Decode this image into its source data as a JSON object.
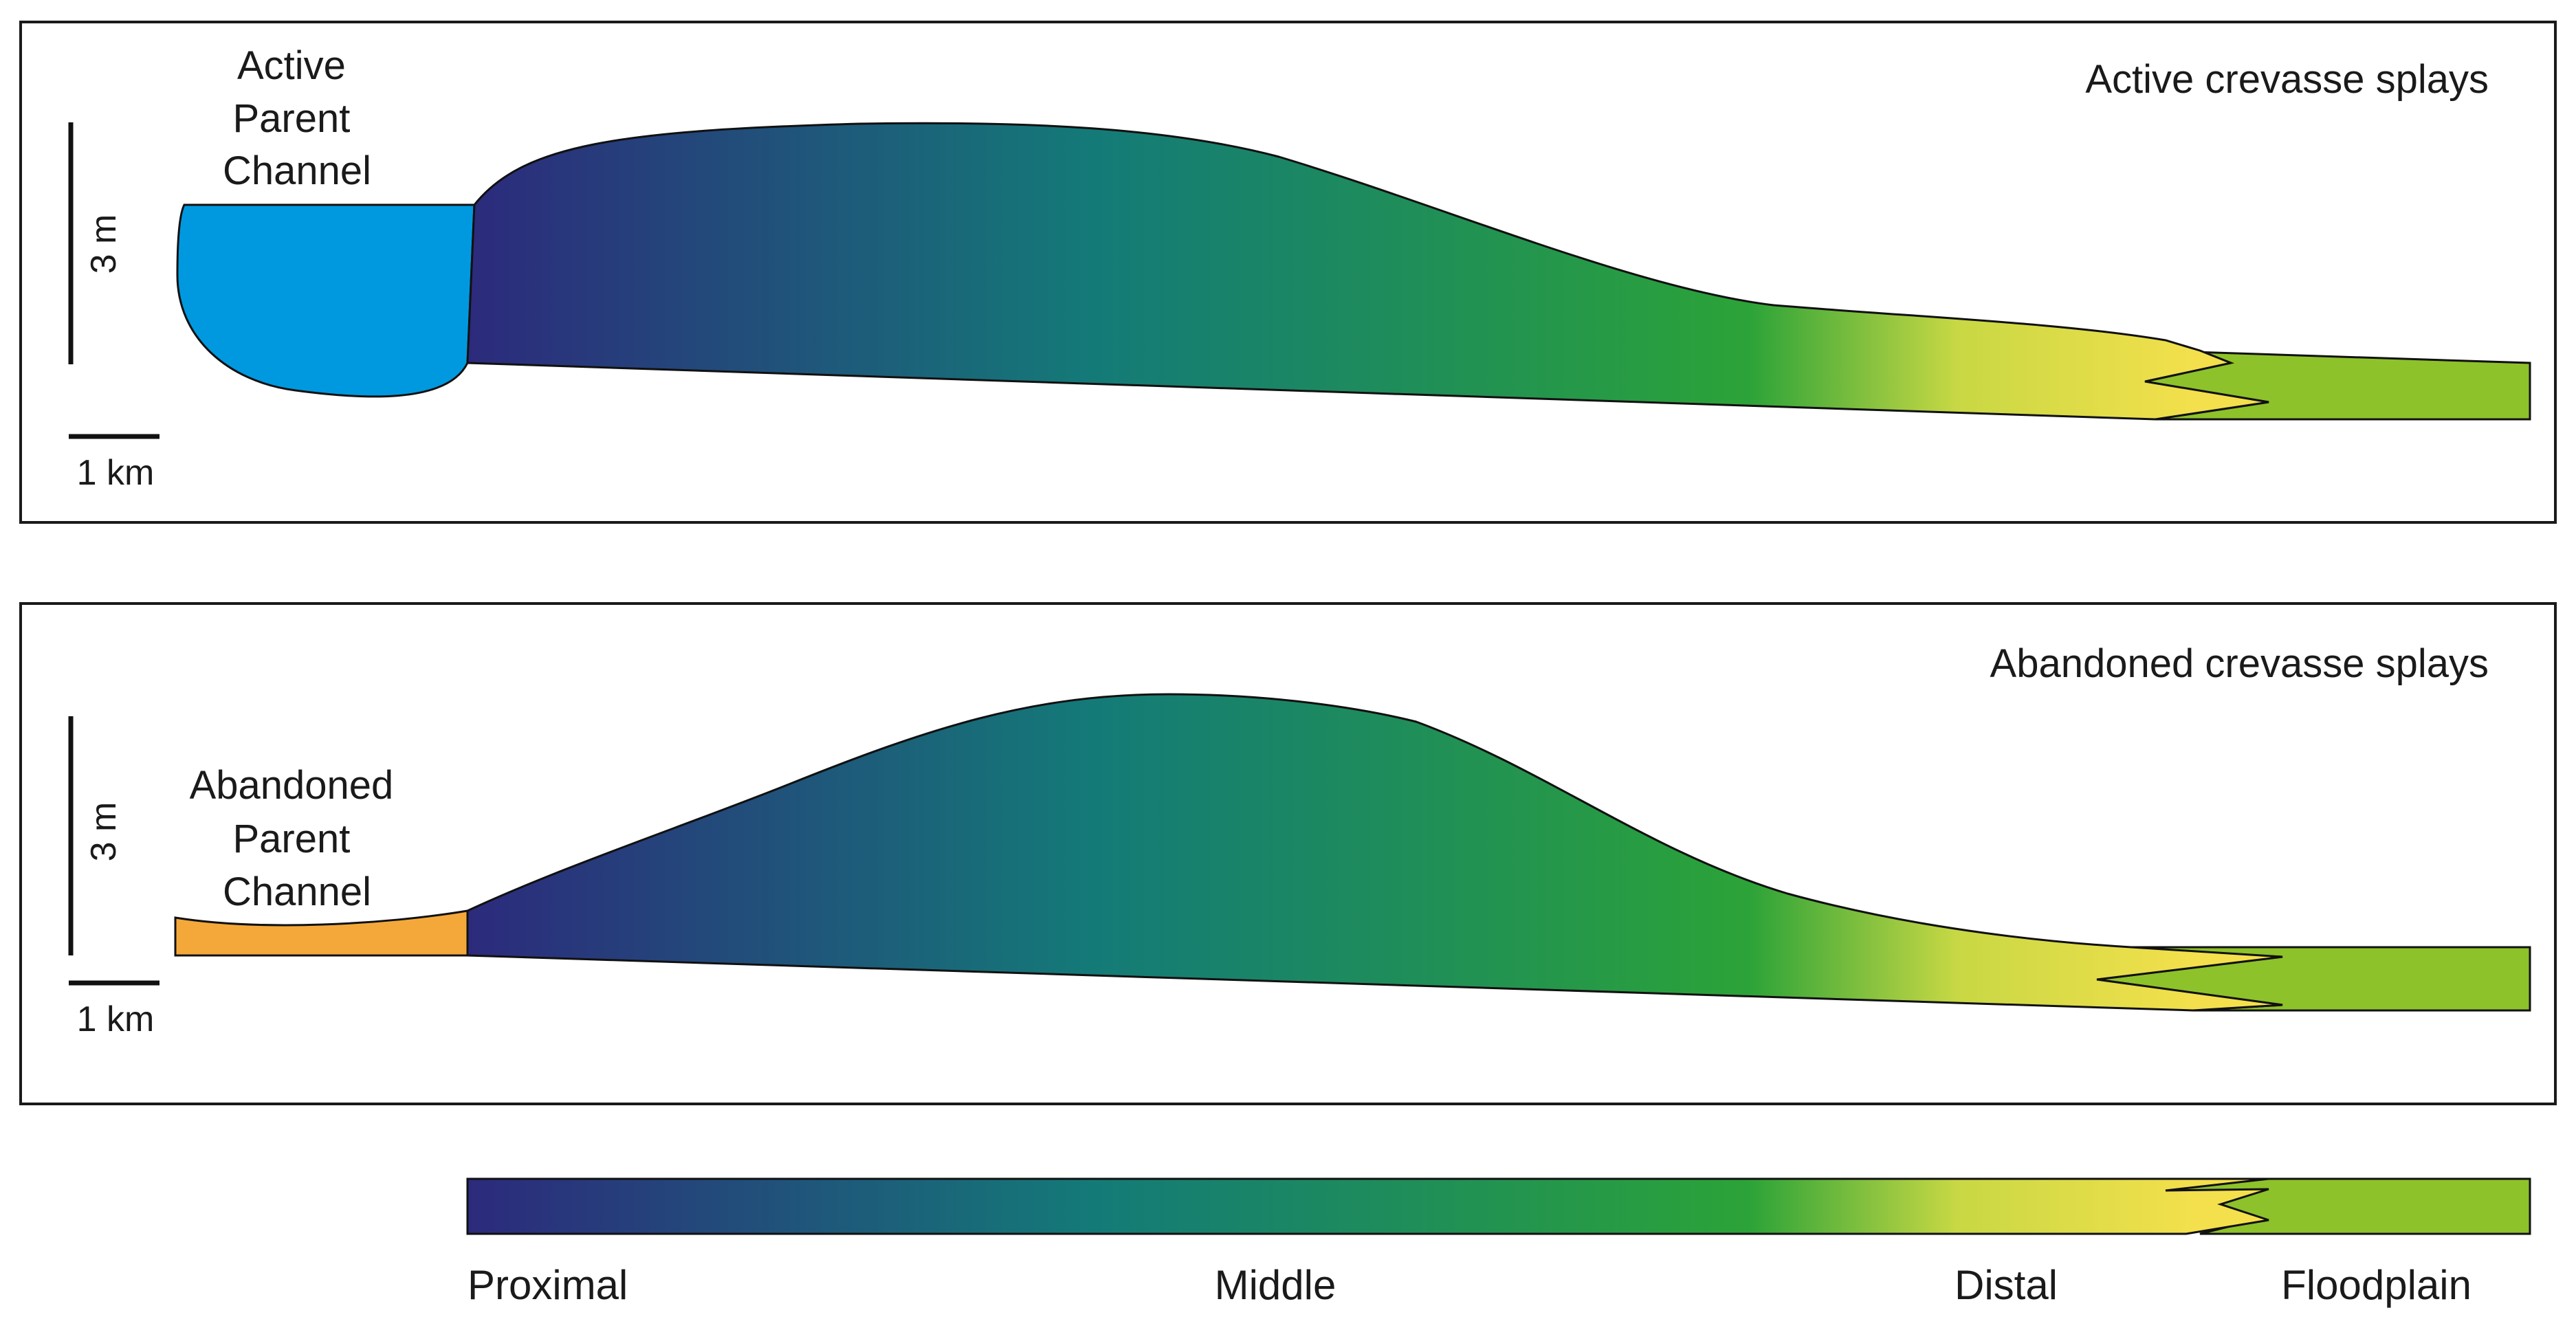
{
  "panels": [
    {
      "title": "Active crevasse splays",
      "channel_label": [
        "Active",
        "Parent",
        "Channel"
      ],
      "vertical_scale": "3 m",
      "horizontal_scale": "1 km",
      "channel_color": "#0099e0"
    },
    {
      "title": "Abandoned crevasse splays",
      "channel_label": [
        "Abandoned",
        "Parent",
        "Channel"
      ],
      "vertical_scale": "3 m",
      "horizontal_scale": "1 km",
      "channel_color": "#f5a83a"
    }
  ],
  "legend": {
    "labels": [
      "Proximal",
      "Middle",
      "Distal",
      "Floodplain"
    ]
  },
  "colors": {
    "proximal": "#2c2a7c",
    "middle_teal": "#147a78",
    "middle_green": "#2ca338",
    "distal_yellow": "#f4e04c",
    "floodplain": "#8ec22a",
    "outline": "#111111"
  }
}
